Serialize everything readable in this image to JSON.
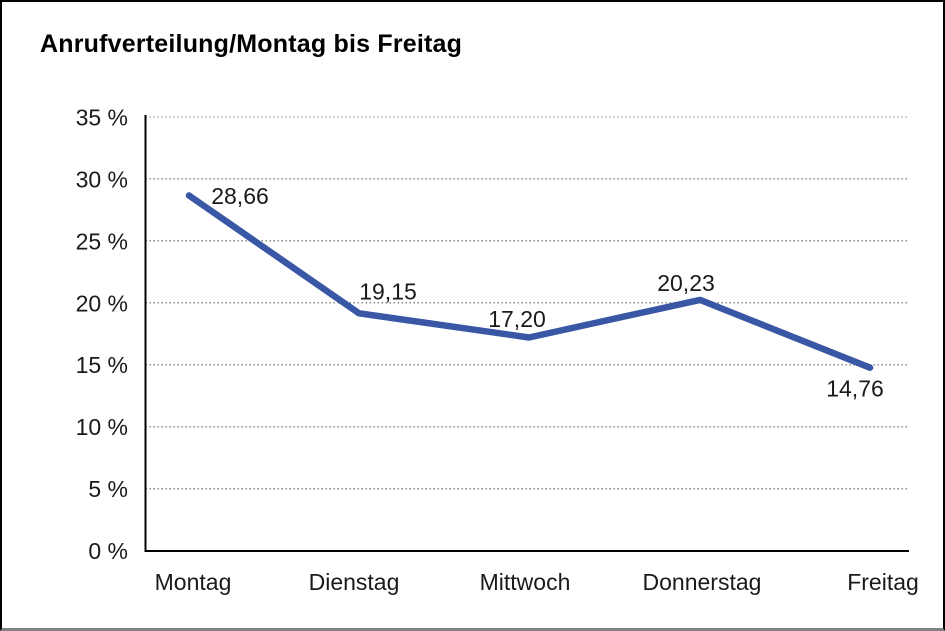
{
  "chart_data": {
    "type": "line",
    "title": "Anrufverteilung/Montag bis Freitag",
    "categories": [
      "Montag",
      "Dienstag",
      "Mittwoch",
      "Donnerstag",
      "Freitag"
    ],
    "values": [
      28.66,
      19.15,
      17.2,
      20.23,
      14.76
    ],
    "value_labels": [
      "28,66",
      "19,15",
      "17,20",
      "20,23",
      "14,76"
    ],
    "xlabel": "",
    "ylabel": "",
    "ylim": [
      0,
      35
    ],
    "ytick_step": 5,
    "ytick_labels": [
      "0 %",
      "5 %",
      "10 %",
      "15 %",
      "20 %",
      "25 %",
      "30 %",
      "35 %"
    ],
    "grid": "horizontal-dotted",
    "legend": "none",
    "line_color": "#3A57A6",
    "grid_color": "#8a8a8a",
    "axis_color": "#000000",
    "decimal_separator": ","
  }
}
